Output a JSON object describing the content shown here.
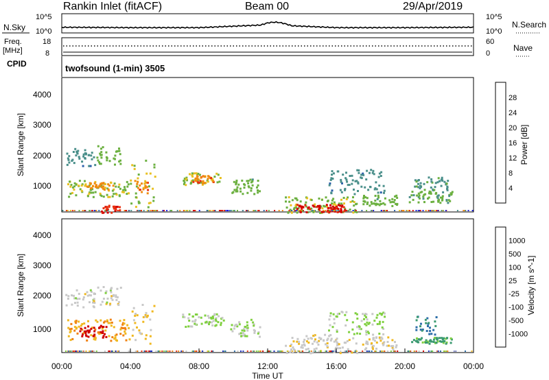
{
  "header": {
    "station": "Rankin Inlet (fitACF)",
    "beam": "Beam 00",
    "date": "29/Apr/2019"
  },
  "nsky_panel": {
    "left_label": "N.Sky",
    "right_label": "N.Search",
    "left_ticks": [
      "10^5",
      "10^0"
    ],
    "right_ticks": [
      "10^5",
      "10^0"
    ]
  },
  "freq_panel": {
    "left_label_line1": "Freq.",
    "left_label_line2": "[MHz]",
    "left_ticks": [
      "18",
      "8"
    ],
    "right_label": "Nave",
    "right_ticks": [
      "60",
      "0"
    ],
    "cpid_label": "CPID",
    "mode_text": "twofsound (1-min) 3505"
  },
  "x_axis": {
    "ticks": [
      "00:00",
      "04:00",
      "08:00",
      "12:00",
      "16:00",
      "20:00",
      "00:00"
    ],
    "label": "Time UT"
  },
  "power_panel": {
    "ylabel": "Slant Range [km]",
    "yticks": [
      "4000",
      "3000",
      "2000",
      "1000"
    ],
    "colorbar_label": "Power [dB]",
    "colorbar_ticks": [
      "28",
      "24",
      "20",
      "16",
      "12",
      "8",
      "4"
    ],
    "colors": [
      "#1a1ee0",
      "#2a5fa8",
      "#4a8f8a",
      "#6cb040",
      "#e8c020",
      "#f08a10",
      "#e83010",
      "#d40000"
    ]
  },
  "velocity_panel": {
    "ylabel": "Slant Range [km]",
    "yticks": [
      "4000",
      "3000",
      "2000",
      "1000"
    ],
    "colorbar_label": "Velocity [m s^-1]",
    "colorbar_ticks": [
      "1000",
      "500",
      "100",
      "25",
      "-25",
      "-100",
      "-500",
      "-1000"
    ],
    "colors": [
      "#2030c0",
      "#2c6ea8",
      "#3a9a70",
      "#80d040",
      "#c8c8c8",
      "#f0b820",
      "#f08010",
      "#e83010",
      "#d00000"
    ]
  },
  "chart_data": [
    {
      "type": "line",
      "title": "N.Sky / N.Search",
      "x": [
        "00:00",
        "04:00",
        "08:00",
        "12:00",
        "16:00",
        "20:00",
        "00:00"
      ],
      "series": [
        {
          "name": "N.Sky",
          "values": [
            1.2,
            1.1,
            1.1,
            1.9,
            1.1,
            1.1,
            1.2
          ]
        }
      ],
      "ylim": [
        0,
        5
      ]
    },
    {
      "type": "heatmap",
      "title": "Power [dB]",
      "x": [
        "00:00",
        "04:00",
        "08:00",
        "12:00",
        "16:00",
        "20:00",
        "00:00"
      ],
      "ylabel": "Slant Range [km]",
      "ylim": [
        180,
        4600
      ],
      "color_range": [
        0,
        30
      ],
      "blobs": [
        {
          "t0": 0.2,
          "t1": 1.9,
          "r0": 1700,
          "r1": 2300,
          "v": 9
        },
        {
          "t0": 2.0,
          "t1": 3.4,
          "r0": 1750,
          "r1": 2400,
          "v": 13
        },
        {
          "t0": 0.3,
          "t1": 4.0,
          "r0": 700,
          "r1": 1250,
          "v": 14
        },
        {
          "t0": 1.4,
          "t1": 3.0,
          "r0": 900,
          "r1": 1200,
          "v": 20
        },
        {
          "t0": 2.2,
          "t1": 3.4,
          "r0": 180,
          "r1": 420,
          "v": 26
        },
        {
          "t0": 4.0,
          "t1": 5.4,
          "r0": 350,
          "r1": 1900,
          "v": 15
        },
        {
          "t0": 4.2,
          "t1": 5.0,
          "r0": 800,
          "r1": 1300,
          "v": 21
        },
        {
          "t0": 7.0,
          "t1": 9.2,
          "r0": 1100,
          "r1": 1500,
          "v": 15
        },
        {
          "t0": 7.6,
          "t1": 8.8,
          "r0": 1150,
          "r1": 1400,
          "v": 22
        },
        {
          "t0": 9.8,
          "t1": 11.6,
          "r0": 750,
          "r1": 1300,
          "v": 13
        },
        {
          "t0": 13.0,
          "t1": 17.2,
          "r0": 180,
          "r1": 700,
          "v": 14
        },
        {
          "t0": 13.6,
          "t1": 16.6,
          "r0": 200,
          "r1": 450,
          "v": 27
        },
        {
          "t0": 15.5,
          "t1": 18.8,
          "r0": 800,
          "r1": 1600,
          "v": 9
        },
        {
          "t0": 17.5,
          "t1": 19.5,
          "r0": 400,
          "r1": 750,
          "v": 13
        },
        {
          "t0": 20.2,
          "t1": 22.8,
          "r0": 500,
          "r1": 900,
          "v": 12
        },
        {
          "t0": 20.5,
          "t1": 22.5,
          "r0": 900,
          "r1": 1350,
          "v": 10
        }
      ]
    },
    {
      "type": "heatmap",
      "title": "Velocity [m s^-1]",
      "x": [
        "00:00",
        "04:00",
        "08:00",
        "12:00",
        "16:00",
        "20:00",
        "00:00"
      ],
      "ylabel": "Slant Range [km]",
      "ylim": [
        180,
        4600
      ],
      "color_range": [
        -1000,
        1000
      ],
      "blobs": [
        {
          "t0": 0.2,
          "t1": 1.9,
          "r0": 1700,
          "r1": 2300,
          "v": 0
        },
        {
          "t0": 2.0,
          "t1": 3.4,
          "r0": 1750,
          "r1": 2400,
          "v": 5
        },
        {
          "t0": 0.3,
          "t1": 4.0,
          "r0": 600,
          "r1": 1300,
          "v": 300
        },
        {
          "t0": 1.0,
          "t1": 2.6,
          "r0": 700,
          "r1": 1100,
          "v": 900
        },
        {
          "t0": 4.0,
          "t1": 5.4,
          "r0": 500,
          "r1": 1900,
          "v": 150
        },
        {
          "t0": 7.0,
          "t1": 9.4,
          "r0": 1050,
          "r1": 1500,
          "v": -120
        },
        {
          "t0": 9.8,
          "t1": 11.6,
          "r0": 700,
          "r1": 1300,
          "v": -100
        },
        {
          "t0": 13.0,
          "t1": 17.2,
          "r0": 180,
          "r1": 800,
          "v": 60
        },
        {
          "t0": 15.5,
          "t1": 18.8,
          "r0": 800,
          "r1": 1600,
          "v": -150
        },
        {
          "t0": 17.5,
          "t1": 19.5,
          "r0": 300,
          "r1": 750,
          "v": 70
        },
        {
          "t0": 20.3,
          "t1": 22.8,
          "r0": 500,
          "r1": 700,
          "v": -400
        },
        {
          "t0": 20.6,
          "t1": 21.8,
          "r0": 750,
          "r1": 1400,
          "v": -600
        }
      ]
    }
  ]
}
